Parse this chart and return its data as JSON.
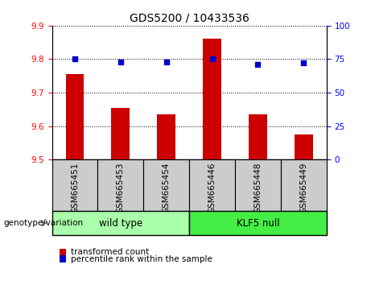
{
  "title": "GDS5200 / 10433536",
  "samples": [
    "GSM665451",
    "GSM665453",
    "GSM665454",
    "GSM665446",
    "GSM665448",
    "GSM665449"
  ],
  "transformed_counts": [
    9.755,
    9.655,
    9.635,
    9.86,
    9.635,
    9.575
  ],
  "percentile_ranks": [
    75,
    73,
    73,
    75,
    71,
    72
  ],
  "groups": [
    {
      "label": "wild type",
      "indices": [
        0,
        1,
        2
      ],
      "color": "#aaffaa"
    },
    {
      "label": "KLF5 null",
      "indices": [
        3,
        4,
        5
      ],
      "color": "#44ee44"
    }
  ],
  "ylim_left": [
    9.5,
    9.9
  ],
  "ylim_right": [
    0,
    100
  ],
  "yticks_left": [
    9.5,
    9.6,
    9.7,
    9.8,
    9.9
  ],
  "yticks_right": [
    0,
    25,
    50,
    75,
    100
  ],
  "bar_color": "#cc0000",
  "dot_color": "#0000cc",
  "bg_color_xticklabels": "#cccccc",
  "legend_items": [
    "transformed count",
    "percentile rank within the sample"
  ],
  "genotype_label": "genotype/variation"
}
